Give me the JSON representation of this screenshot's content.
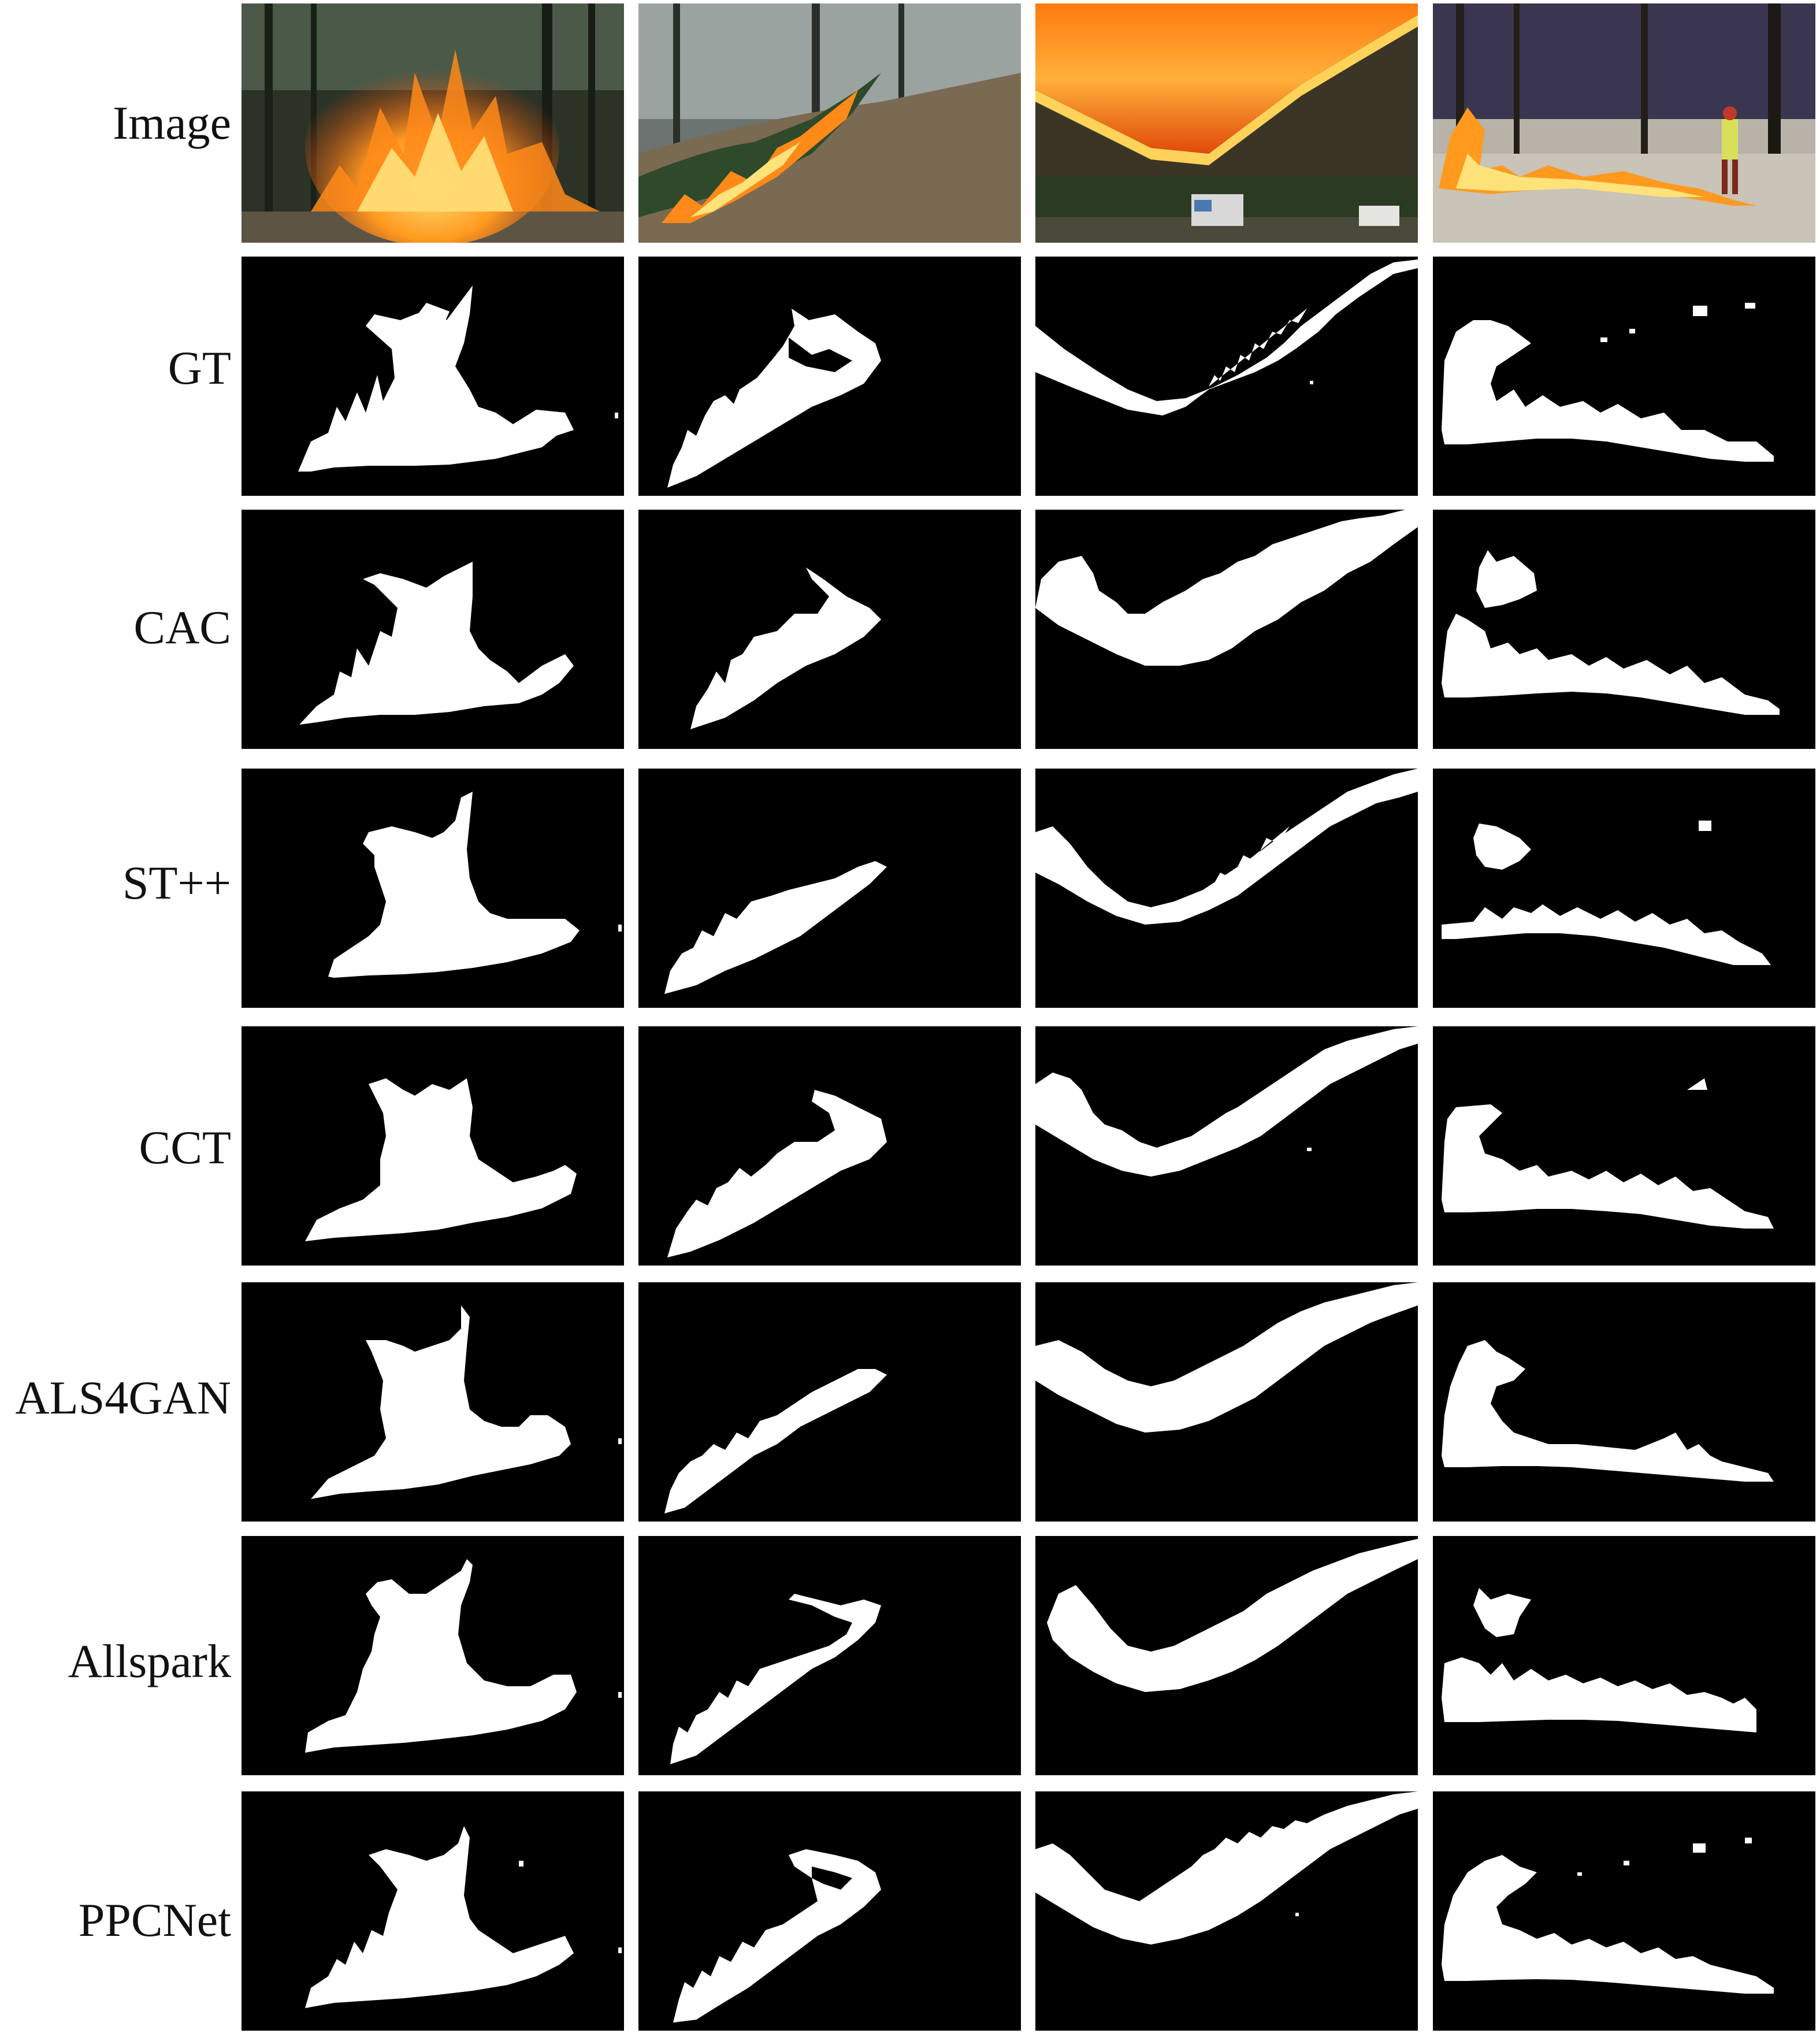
{
  "figure": {
    "row_labels": [
      "Image",
      "GT",
      "CAC",
      "ST++",
      "CCT",
      "ALS4GAN",
      "Allspark",
      "PPCNet"
    ],
    "columns": 4,
    "mask_foreground_color": "#ffffff",
    "mask_background_color": "#000000",
    "photo_palette": {
      "flame_core": "#ffe27a",
      "flame_mid": "#ff9a1f",
      "flame_outer": "#e0430a",
      "ember": "#7a1500",
      "forest_dark": "#1f2a1e",
      "forest_mid": "#3d4a35",
      "smoke": "#9aa3a0",
      "ground": "#7a6a52",
      "sky_dusk": "#3a3650",
      "ash_ground": "#c9c3b8"
    }
  }
}
